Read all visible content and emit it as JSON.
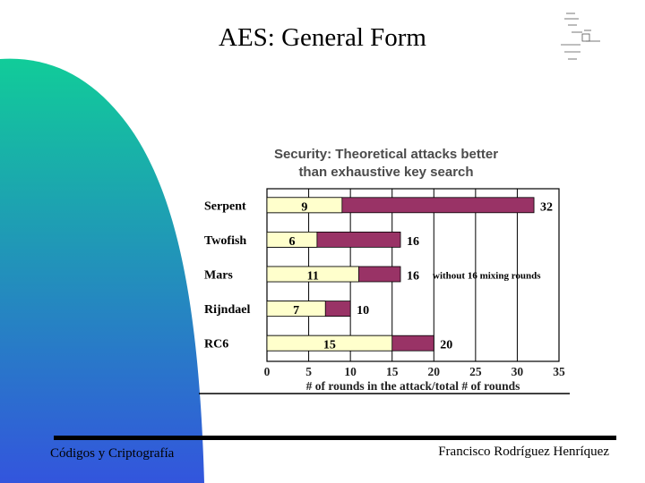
{
  "slide": {
    "title": "AES: General Form",
    "footer_left": "Códigos y Criptografía",
    "footer_right": "Francisco Rodríguez Henríquez"
  },
  "colors": {
    "total_bar": "#993366",
    "attack_bar": "#ffffcc",
    "gradient_top": "#11cc99",
    "gradient_bottom": "#3355dd"
  },
  "chart_data": {
    "type": "bar",
    "orientation": "horizontal",
    "stacked_overlay": true,
    "title_lines": [
      "Security: Theoretical attacks better",
      "than exhaustive key search"
    ],
    "xlabel": "# of rounds in the attack/total # of rounds",
    "xlim": [
      0,
      35
    ],
    "xticks": [
      0,
      5,
      10,
      15,
      20,
      25,
      30,
      35
    ],
    "grid": "vertical",
    "categories": [
      "Serpent",
      "Twofish",
      "Mars",
      "Rijndael",
      "RC6"
    ],
    "series": [
      {
        "role": "attack_rounds",
        "values": [
          9,
          6,
          11,
          7,
          15
        ]
      },
      {
        "role": "total_rounds",
        "values": [
          32,
          16,
          16,
          10,
          20
        ]
      }
    ],
    "annotations": [
      {
        "category": "Mars",
        "text": "without 16 mixing rounds"
      }
    ]
  }
}
